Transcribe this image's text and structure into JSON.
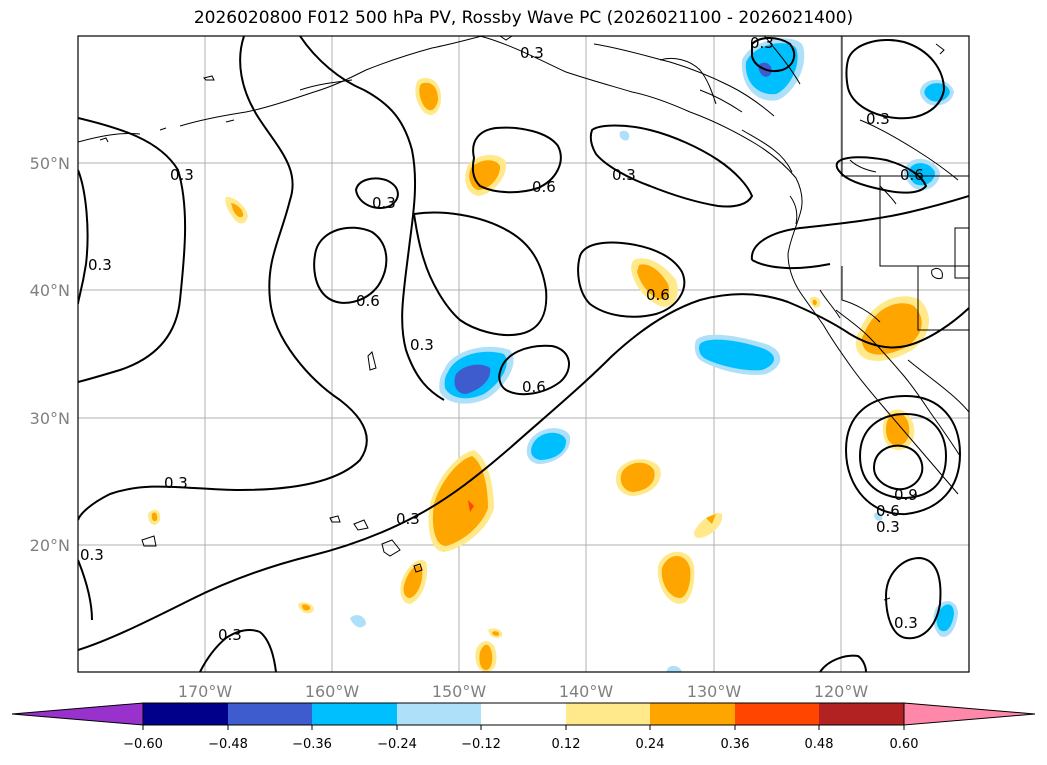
{
  "title": "2026020800 F012 500 hPa PV, Rossby Wave PC (2026021100 - 2026021400)",
  "map": {
    "lat_labels": [
      "50°N",
      "40°N",
      "30°N",
      "20°N"
    ],
    "lon_labels": [
      "170°W",
      "160°W",
      "150°W",
      "140°W",
      "130°W",
      "120°W"
    ],
    "contour_labels": [
      "0.3",
      "0.3",
      "0.3",
      "0.3",
      "0.3",
      "0.3",
      "0.3",
      "0.3",
      "0.3",
      "0.3",
      "0.3",
      "0.3",
      "0.6",
      "0.6",
      "0.6",
      "0.6",
      "0.6",
      "0.6",
      "0.9"
    ],
    "colors": {
      "positive_light": "#ffe98a",
      "positive_mid": "#ffa500",
      "positive_strong": "#ff4500",
      "negative_light": "#aee0fa",
      "negative_mid": "#00bfff",
      "negative_strong": "#3f5ccf"
    }
  },
  "colorbar": {
    "ticks": [
      "−0.60",
      "−0.48",
      "−0.36",
      "−0.24",
      "−0.12",
      "0.12",
      "0.24",
      "0.36",
      "0.48",
      "0.60"
    ],
    "colors": [
      "#9932cc",
      "#00008b",
      "#3f5ccf",
      "#00bfff",
      "#aee0fa",
      "#ffffff",
      "#ffe98a",
      "#ffa500",
      "#ff4500",
      "#b22222",
      "#ff88aa"
    ]
  }
}
